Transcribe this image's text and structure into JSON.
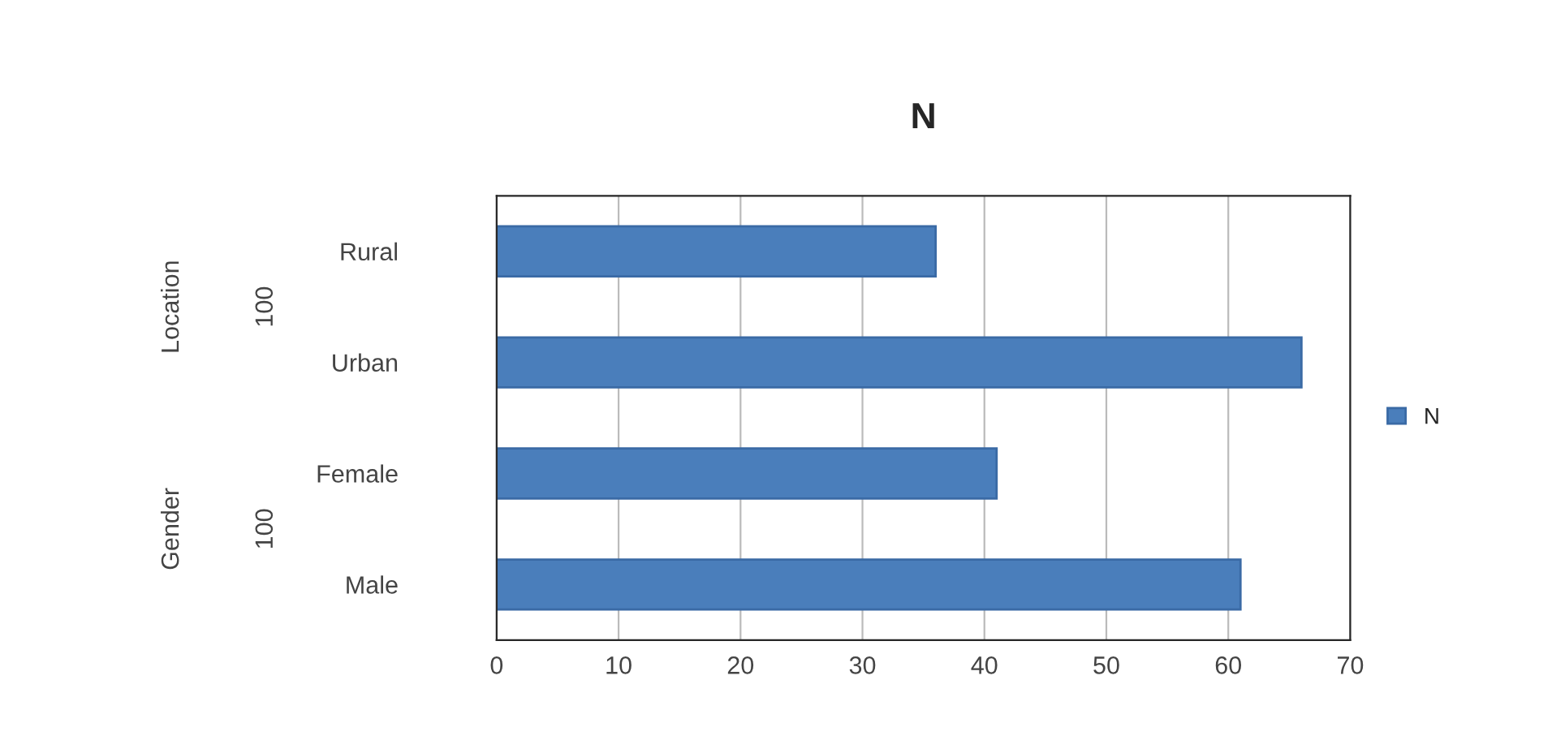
{
  "chart_data": {
    "type": "bar",
    "orientation": "horizontal",
    "title": "N",
    "categories": [
      "Rural",
      "Urban",
      "Female",
      "Male"
    ],
    "series": [
      {
        "name": "N",
        "color": "#4a7ebb",
        "values": [
          36,
          66,
          41,
          61
        ]
      }
    ],
    "xlim": [
      0,
      70
    ],
    "xticks": [
      0,
      10,
      20,
      30,
      40,
      50,
      60,
      70
    ],
    "grid": "x",
    "legend": "right",
    "annotations": [
      "Location",
      "100",
      "Gender",
      "100"
    ]
  }
}
